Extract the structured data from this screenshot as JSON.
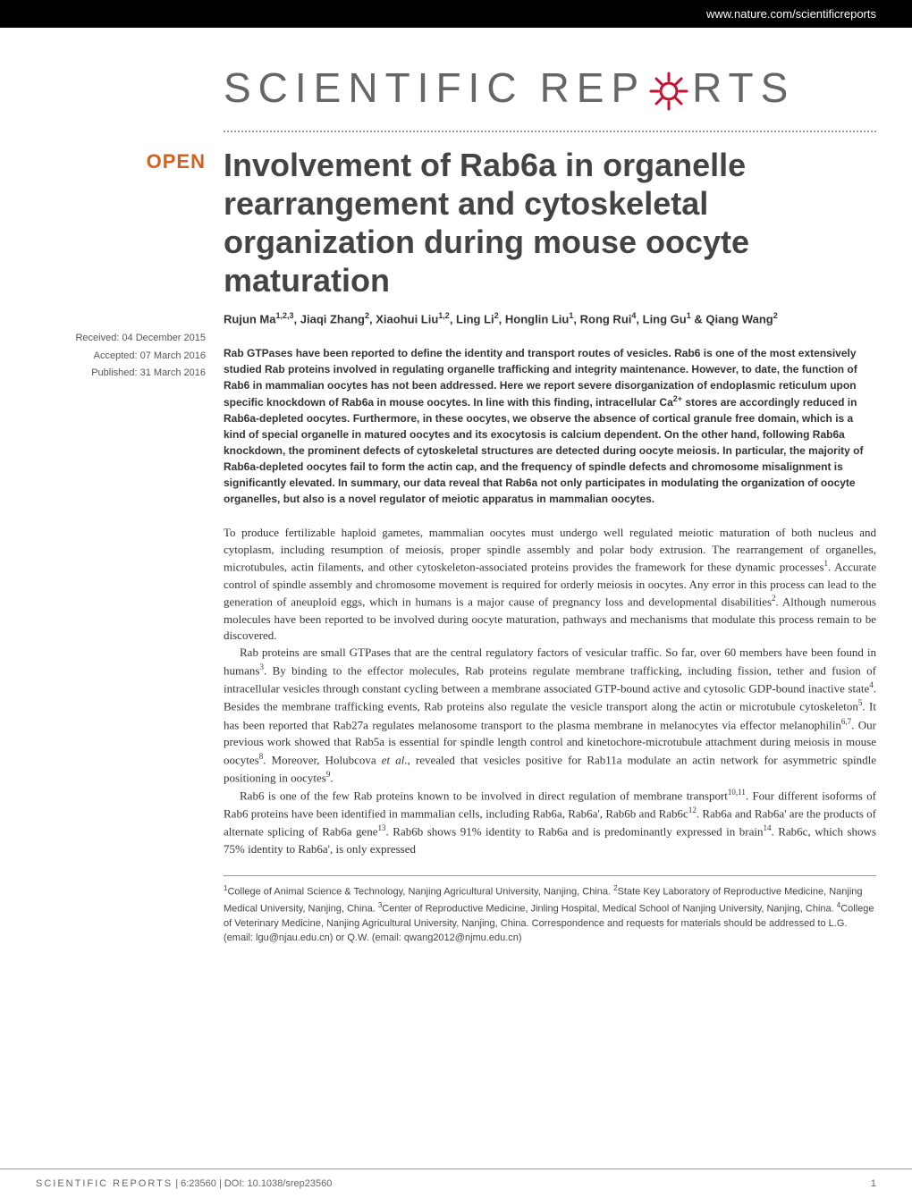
{
  "header": {
    "url": "www.nature.com/scientificreports"
  },
  "logo": {
    "part1": "SCIENTIFIC",
    "part2": "REP",
    "part3": "RTS",
    "gear_color": "#c8102e"
  },
  "badge": {
    "open": "OPEN"
  },
  "dates": {
    "received": "Received: 04 December 2015",
    "accepted": "Accepted: 07 March 2016",
    "published": "Published: 31 March 2016"
  },
  "title": "Involvement of Rab6a in organelle rearrangement and cytoskeletal organization during mouse oocyte maturation",
  "authors_html": "Rujun Ma<sup>1,2,3</sup>, Jiaqi Zhang<sup>2</sup>, Xiaohui Liu<sup>1,2</sup>, Ling Li<sup>2</sup>, Honglin Liu<sup>1</sup>, Rong Rui<sup>4</sup>, Ling Gu<sup>1</sup> & Qiang Wang<sup>2</sup>",
  "abstract_html": "Rab GTPases have been reported to define the identity and transport routes of vesicles. Rab6 is one of the most extensively studied Rab proteins involved in regulating organelle trafficking and integrity maintenance. However, to date, the function of Rab6 in mammalian oocytes has not been addressed. Here we report severe disorganization of endoplasmic reticulum upon specific knockdown of Rab6a in mouse oocytes. In line with this finding, intracellular Ca<sup>2+</sup> stores are accordingly reduced in Rab6a-depleted oocytes. Furthermore, in these oocytes, we observe the absence of cortical granule free domain, which is a kind of special organelle in matured oocytes and its exocytosis is calcium dependent. On the other hand, following Rab6a knockdown, the prominent defects of cytoskeletal structures are detected during oocyte meiosis. In particular, the majority of Rab6a-depleted oocytes fail to form the actin cap, and the frequency of spindle defects and chromosome misalignment is significantly elevated. In summary, our data reveal that Rab6a not only participates in modulating the organization of oocyte organelles, but also is a novel regulator of meiotic apparatus in mammalian oocytes.",
  "body": {
    "p1_html": "To produce fertilizable haploid gametes, mammalian oocytes must undergo well regulated meiotic maturation of both nucleus and cytoplasm, including resumption of meiosis, proper spindle assembly and polar body extrusion. The rearrangement of organelles, microtubules, actin filaments, and other cytoskeleton-associated proteins provides the framework for these dynamic processes<sup>1</sup>. Accurate control of spindle assembly and chromosome movement is required for orderly meiosis in oocytes. Any error in this process can lead to the generation of aneuploid eggs, which in humans is a major cause of pregnancy loss and developmental disabilities<sup>2</sup>. Although numerous molecules have been reported to be involved during oocyte maturation, pathways and mechanisms that modulate this process remain to be discovered.",
    "p2_html": "Rab proteins are small GTPases that are the central regulatory factors of vesicular traffic. So far, over 60 members have been found in humans<sup>3</sup>. By binding to the effector molecules, Rab proteins regulate membrane trafficking, including fission, tether and fusion of intracellular vesicles through constant cycling between a membrane associated GTP-bound active and cytosolic GDP-bound inactive state<sup>4</sup>. Besides the membrane trafficking events, Rab proteins also regulate the vesicle transport along the actin or microtubule cytoskeleton<sup>5</sup>. It has been reported that Rab27a regulates melanosome transport to the plasma membrane in melanocytes via effector melanophilin<sup>6,7</sup>. Our previous work showed that Rab5a is essential for spindle length control and kinetochore-microtubule attachment during meiosis in mouse oocytes<sup>8</sup>. Moreover, Holubcova <em>et al.</em>, revealed that vesicles positive for Rab11a modulate an actin network for asymmetric spindle positioning in oocytes<sup>9</sup>.",
    "p3_html": "Rab6 is one of the few Rab proteins known to be involved in direct regulation of membrane transport<sup>10,11</sup>. Four different isoforms of Rab6 proteins have been identified in mammalian cells, including Rab6a, Rab6a', Rab6b and Rab6c<sup>12</sup>. Rab6a and Rab6a' are the products of alternate splicing of Rab6a gene<sup>13</sup>. Rab6b shows 91% identity to Rab6a and is predominantly expressed in brain<sup>14</sup>. Rab6c, which shows 75% identity to Rab6a', is only expressed"
  },
  "affiliations_html": "<sup>1</sup>College of Animal Science & Technology, Nanjing Agricultural University, Nanjing, China. <sup>2</sup>State Key Laboratory of Reproductive Medicine, Nanjing Medical University, Nanjing, China. <sup>3</sup>Center of Reproductive Medicine, Jinling Hospital, Medical School of Nanjing University, Nanjing, China. <sup>4</sup>College of Veterinary Medicine, Nanjing Agricultural University, Nanjing, China. Correspondence and requests for materials should be addressed to L.G. (email: lgu@njau.edu.cn) or Q.W. (email: qwang2012@njmu.edu.cn)",
  "footer": {
    "journal": "SCIENTIFIC REPORTS",
    "citation": " | 6:23560 | DOI: 10.1038/srep23560",
    "page": "1"
  }
}
